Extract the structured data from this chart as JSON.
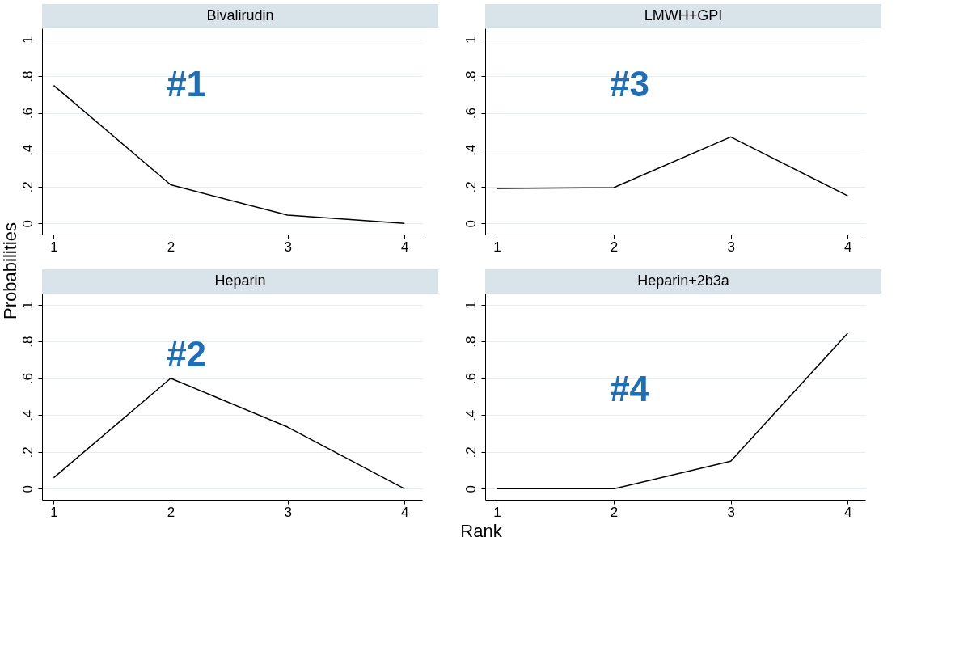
{
  "chart_data": [
    {
      "type": "line",
      "title": "Bivalirudin",
      "xlabel": "Rank",
      "ylabel": "Probabilities",
      "annotations": [
        "#1"
      ],
      "x": [
        1,
        2,
        3,
        4
      ],
      "series": [
        {
          "color": "#000000",
          "values": [
            0.75,
            0.21,
            0.045,
            0
          ]
        }
      ],
      "xlim": [
        0.9,
        4.15
      ],
      "xticks": [
        1,
        2,
        3,
        4
      ],
      "ylim": [
        -0.06,
        1.06
      ],
      "yticks": [
        {
          "value": 0,
          "label": "0"
        },
        {
          "value": 0.2,
          "label": ".2"
        },
        {
          "value": 0.4,
          "label": ".4"
        },
        {
          "value": 0.6,
          "label": ".6"
        },
        {
          "value": 0.8,
          "label": ".8"
        },
        {
          "value": 1,
          "label": "1"
        }
      ],
      "grid": "y",
      "legend": false
    },
    {
      "type": "line",
      "title": "LMWH+GPI",
      "annotations": [
        "#3"
      ],
      "x": [
        1,
        2,
        3,
        4
      ],
      "series": [
        {
          "color": "#000000",
          "values": [
            0.19,
            0.195,
            0.47,
            0.15
          ]
        }
      ],
      "xlim": [
        0.9,
        4.15
      ],
      "xticks": [
        1,
        2,
        3,
        4
      ],
      "ylim": [
        -0.06,
        1.06
      ],
      "yticks": [
        {
          "value": 0,
          "label": "0"
        },
        {
          "value": 0.2,
          "label": ".2"
        },
        {
          "value": 0.4,
          "label": ".4"
        },
        {
          "value": 0.6,
          "label": ".6"
        },
        {
          "value": 0.8,
          "label": ".8"
        },
        {
          "value": 1,
          "label": "1"
        }
      ],
      "grid": "y",
      "legend": false
    },
    {
      "type": "line",
      "title": "Heparin",
      "annotations": [
        "#2"
      ],
      "x": [
        1,
        2,
        3,
        4
      ],
      "series": [
        {
          "color": "#000000",
          "values": [
            0.06,
            0.6,
            0.335,
            0
          ]
        }
      ],
      "xlim": [
        0.9,
        4.15
      ],
      "xticks": [
        1,
        2,
        3,
        4
      ],
      "ylim": [
        -0.06,
        1.06
      ],
      "yticks": [
        {
          "value": 0,
          "label": "0"
        },
        {
          "value": 0.2,
          "label": ".2"
        },
        {
          "value": 0.4,
          "label": ".4"
        },
        {
          "value": 0.6,
          "label": ".6"
        },
        {
          "value": 0.8,
          "label": ".8"
        },
        {
          "value": 1,
          "label": "1"
        }
      ],
      "grid": "y",
      "legend": false
    },
    {
      "type": "line",
      "title": "Heparin+2b3a",
      "annotations": [
        "#4"
      ],
      "x": [
        1,
        2,
        3,
        4
      ],
      "series": [
        {
          "color": "#000000",
          "values": [
            0,
            0,
            0.15,
            0.845
          ]
        }
      ],
      "xlim": [
        0.9,
        4.15
      ],
      "xticks": [
        1,
        2,
        3,
        4
      ],
      "ylim": [
        -0.06,
        1.06
      ],
      "yticks": [
        {
          "value": 0,
          "label": "0"
        },
        {
          "value": 0.2,
          "label": ".2"
        },
        {
          "value": 0.4,
          "label": ".4"
        },
        {
          "value": 0.6,
          "label": ".6"
        },
        {
          "value": 0.8,
          "label": ".8"
        },
        {
          "value": 1,
          "label": "1"
        }
      ],
      "grid": "y",
      "legend": false
    }
  ]
}
